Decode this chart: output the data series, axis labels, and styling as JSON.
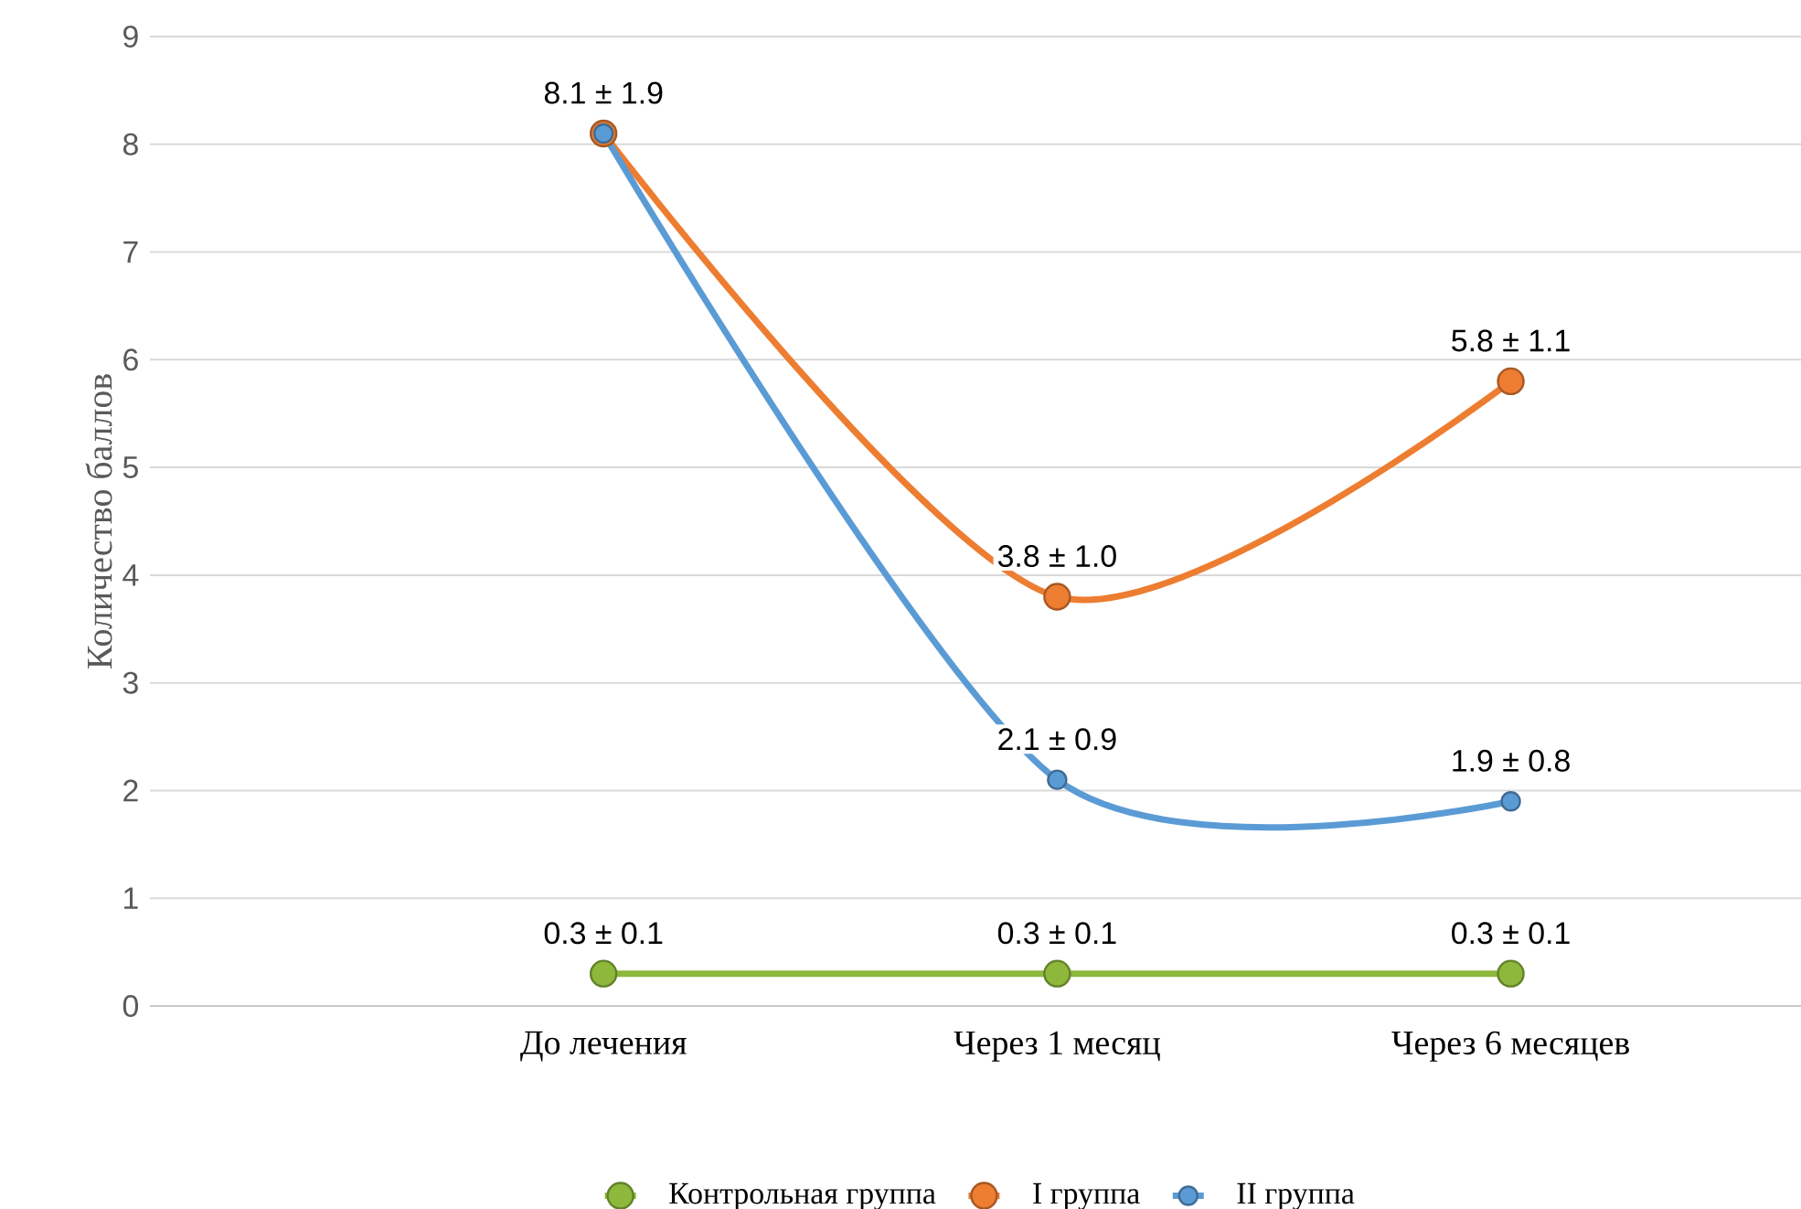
{
  "chart_data": {
    "type": "line",
    "ylabel": "Количество баллов",
    "categories": [
      "До лечения",
      "Через 1 месяц",
      "Через 6 месяцев"
    ],
    "series": [
      {
        "name": "Контрольная группа",
        "color": "#8db83c",
        "values": [
          0.3,
          0.3,
          0.3
        ],
        "value_labels": [
          "0.3 ± 0.1",
          "0.3 ± 0.1",
          "0.3 ± 0.1"
        ]
      },
      {
        "name": "I группа",
        "color": "#ed7d31",
        "values": [
          8.1,
          3.8,
          5.8
        ],
        "value_labels": [
          null,
          "3.8 ± 1.0",
          "5.8 ± 1.1"
        ]
      },
      {
        "name": "II группа",
        "color": "#5b9bd5",
        "values": [
          8.1,
          2.1,
          1.9
        ],
        "value_labels": [
          "8.1 ± 1.9",
          "2.1 ± 0.9",
          "1.9 ± 0.8"
        ]
      }
    ],
    "ylim": [
      0,
      9
    ],
    "yticks": [
      0,
      1,
      2,
      3,
      4,
      5,
      6,
      7,
      8,
      9
    ],
    "grid": "y",
    "legend": "bottom",
    "marker": "circle"
  }
}
